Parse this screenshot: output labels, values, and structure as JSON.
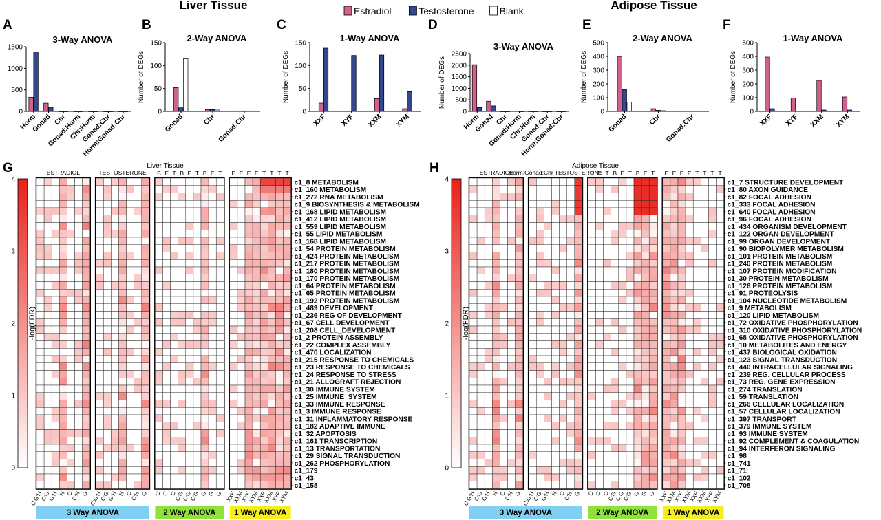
{
  "figure": {
    "liver_title": "Liver Tissue",
    "adipose_title": "Adipose Tissue",
    "legend": [
      {
        "label": "Estradiol",
        "color": "#d4608f"
      },
      {
        "label": "Testosterone",
        "color": "#34488f"
      },
      {
        "label": "Blank",
        "color": "#ffffff"
      }
    ]
  },
  "colors": {
    "estradiol": "#d4608f",
    "testosterone": "#34488f",
    "blank": "#ffffff",
    "heat_max": "#e8221c",
    "heat_min": "#ffffff",
    "anova3": "#7fd0f2",
    "anova2": "#8ee23a",
    "anova1": "#f5ef1e"
  },
  "chart_data": [
    {
      "panel": "A",
      "type": "bar",
      "title": "3-Way ANOVA",
      "ylabel": "Number of DEGs",
      "ylim": [
        0,
        1500
      ],
      "yticks": [
        0,
        500,
        1000,
        1500
      ],
      "categories": [
        "Horm",
        "Gonad",
        "Chr",
        "Gonad:Horm",
        "Chr:Horm",
        "Gonad:Chr",
        "Horm:Gonad:Chr"
      ],
      "series": [
        {
          "name": "Estradiol",
          "values": [
            330,
            190,
            0,
            0,
            0,
            0,
            0
          ]
        },
        {
          "name": "Testosterone",
          "values": [
            1380,
            95,
            0,
            0,
            0,
            0,
            0
          ]
        }
      ]
    },
    {
      "panel": "B",
      "type": "bar",
      "title": "2-Way ANOVA",
      "ylabel": "Number of DEGs",
      "ylim": [
        0,
        150
      ],
      "yticks": [
        0,
        50,
        100,
        150
      ],
      "categories": [
        "Gonad",
        "Chr",
        "Gonad:Chr"
      ],
      "series": [
        {
          "name": "Estradiol",
          "values": [
            52,
            4,
            1
          ]
        },
        {
          "name": "Testosterone",
          "values": [
            8,
            4,
            1
          ]
        },
        {
          "name": "Blank",
          "values": [
            115,
            3,
            1
          ]
        }
      ]
    },
    {
      "panel": "C",
      "type": "bar",
      "title": "1-Way ANOVA",
      "ylabel": "Number of DEGs",
      "ylim": [
        0,
        150
      ],
      "yticks": [
        0,
        50,
        100,
        150
      ],
      "categories": [
        "XXF",
        "XYF",
        "XXM",
        "XYM"
      ],
      "series": [
        {
          "name": "Estradiol",
          "values": [
            18,
            1,
            28,
            6
          ]
        },
        {
          "name": "Testosterone",
          "values": [
            138,
            122,
            123,
            43
          ]
        }
      ]
    },
    {
      "panel": "D",
      "type": "bar",
      "title": "3-Way ANOVA",
      "ylabel": "Number of DEGs",
      "ylim": [
        0,
        2500
      ],
      "yticks": [
        0,
        500,
        1000,
        1500,
        2000,
        2500
      ],
      "categories": [
        "Horm",
        "Gonad",
        "Chr",
        "Gonad:Horm",
        "Chr:Horm",
        "Gonad:Chr",
        "Horm:Gonad:Chr"
      ],
      "series": [
        {
          "name": "Estradiol",
          "values": [
            2020,
            440,
            0,
            10,
            0,
            0,
            0
          ]
        },
        {
          "name": "Testosterone",
          "values": [
            170,
            240,
            0,
            0,
            0,
            0,
            0
          ]
        }
      ]
    },
    {
      "panel": "E",
      "type": "bar",
      "title": "2-Way ANOVA",
      "ylabel": "Number of DEGs",
      "ylim": [
        0,
        500
      ],
      "yticks": [
        0,
        100,
        200,
        300,
        400,
        500
      ],
      "categories": [
        "Gonad",
        "Chr",
        "Gonad:Chr"
      ],
      "series": [
        {
          "name": "Estradiol",
          "values": [
            400,
            20,
            2
          ]
        },
        {
          "name": "Testosterone",
          "values": [
            158,
            8,
            2
          ]
        },
        {
          "name": "Blank",
          "values": [
            68,
            5,
            2
          ]
        }
      ]
    },
    {
      "panel": "F",
      "type": "bar",
      "title": "1-Way ANOVA",
      "ylabel": "Number of DEGs",
      "ylim": [
        0,
        500
      ],
      "yticks": [
        0,
        100,
        200,
        300,
        400,
        500
      ],
      "categories": [
        "XXF",
        "XYF",
        "XXM",
        "XYM"
      ],
      "series": [
        {
          "name": "Estradiol",
          "values": [
            395,
            98,
            225,
            105
          ]
        },
        {
          "name": "Testosterone",
          "values": [
            20,
            2,
            10,
            10
          ]
        }
      ]
    },
    {
      "panel": "G",
      "type": "heatmap",
      "title": "Liver Tissue",
      "colorbar_label": "-log(FDR)",
      "zlim": [
        0,
        4
      ],
      "zticks": [
        0,
        1,
        2,
        3,
        4
      ],
      "group_headers": [
        "ESTRADIOL",
        "TESTOSTERONE",
        "",
        ""
      ],
      "group_sizes": [
        7,
        7,
        9,
        8
      ],
      "top_labels": [
        "",
        "",
        "",
        "",
        "",
        "",
        "",
        "",
        "",
        "",
        "",
        "",
        "",
        "",
        "B",
        "E",
        "T",
        "B",
        "E",
        "T",
        "B",
        "E",
        "T",
        "E",
        "E",
        "E",
        "E",
        "T",
        "T",
        "T",
        "T"
      ],
      "bottom_labels": [
        "C:G:H",
        "C:G",
        "G:H",
        "H",
        "C",
        "C:H",
        "G",
        "C:G:H",
        "C:G",
        "G:H",
        "H",
        "C",
        "C:H",
        "G",
        "C",
        "C",
        "C",
        "C:G",
        "C:G",
        "C:G",
        "G",
        "G",
        "G",
        "XXF",
        "XXM",
        "XYF",
        "XYM",
        "XXF",
        "XXM",
        "XYF",
        "XYM"
      ],
      "rows": [
        "c1_8 METABOLISM",
        "c1_160 METABOLISM",
        "c1_272 RNA METABOLISM",
        "c1_9 BIOSYNTHESIS & METABOLISM",
        "c1_168 LIPID METABOLISM",
        "c1_412 LIPID METABOLISM",
        "c1_559 LIPID METABOLISM",
        "c1_55 LIPID METABOLISM",
        "c1_168 LIPID METABOLISM",
        "c1_54 PROTEIN METABOLISM",
        "c1_424 PROTEIN METABOLISM",
        "c1_217 PROTEIN METABOLISM",
        "c1_180 PROTEIN METABOLISM",
        "c1_170 PROTEIN METABOLISM",
        "c1_64 PROTEIN METABOLISM",
        "c1_65 PROTEIN METABOLISM",
        "c1_192 PROTEIN METABOLISM",
        "c1_489 DEVELOPMENT",
        "c1_236 REG OF DEVELOPMENT",
        "c1_67 CELL DEVELOPMENT",
        "c1_208 CELL_DEVELOPMENT",
        "c1_2 PROTEIN ASSEMBLY",
        "c1_22 COMPLEX ASSEMBLY",
        "c1_470 LOCALIZATION",
        "c1_215 RESPONSE TO CHEMICALS",
        "c1_23 RESPONSE TO CHEMICALS",
        "c1_24 RESPONSE TO STRESS",
        "c1_21 ALLOGRAFT REJECTION",
        "c1_30 IMMUNE SYSTEM",
        "c1_25 IMMUNE_SYSTEM",
        "c1_33 IMMUNE RESPONSE",
        "c1_3 IMMUNE RESPONSE",
        "c1_31 INFLAMMATORY RESPONSE",
        "c1_182 ADAPTIVE IMMUNE",
        "c1_32 APOPTOSIS",
        "c1_161 TRANSCRIPTION",
        "c1_13 TRANSPORTATION",
        "c1_29 SIGNAL TRANSDUCTION",
        "c1_262 PHOSPHORYLATION",
        "c1_179",
        "c1_43",
        "c1_158"
      ],
      "strong_columns": [
        3,
        6,
        10,
        13,
        20,
        25,
        26,
        27,
        28,
        29,
        30
      ]
    },
    {
      "panel": "H",
      "type": "heatmap",
      "title": "Adipose Tissue",
      "colorbar_label": "-log(FDR)",
      "zlim": [
        0,
        4
      ],
      "zticks": [
        0,
        1,
        2,
        3,
        4
      ],
      "group_headers": [
        "ESTRADIOL",
        "Horm:Gonad:Chr TESTOSTERONE",
        "",
        ""
      ],
      "group_sizes": [
        7,
        7,
        9,
        8
      ],
      "top_labels": [
        "",
        "",
        "",
        "",
        "",
        "",
        "",
        "",
        "",
        "",
        "",
        "",
        "",
        "",
        "B",
        "E",
        "T",
        "B",
        "E",
        "T",
        "B",
        "E",
        "T",
        "E",
        "E",
        "E",
        "E",
        "T",
        "T",
        "T",
        "T"
      ],
      "bottom_labels": [
        "C:G:H",
        "C:G",
        "G:H",
        "H",
        "C",
        "C:H",
        "G",
        "C:G:H",
        "C:G",
        "G:H",
        "H",
        "C",
        "C:H",
        "G",
        "C",
        "C",
        "C",
        "C:G",
        "C:G",
        "C:G",
        "G",
        "G",
        "G",
        "XXF",
        "XXM",
        "XYF",
        "XYM",
        "XXF",
        "XXM",
        "XYF",
        "XYM"
      ],
      "rows": [
        "c1_7 STRUCTURE DEVELOPMENT",
        "c1_80 AXON GUIDANCE",
        "c1_82 FOCAL ADHESION",
        "c1_333 FOCAL ADHESION",
        "c1_640 FOCAL ADHESION",
        "c1_96 FOCAL ADHESION",
        "c1_434 ORGANISM DEVELOPMENT",
        "c1_122 ORGAN DEVELOPMENT",
        "c1_99 ORGAN DEVELOPMENT",
        "c1_90 BIOPOLYMER METABOLISM",
        "c1_101 PROTEIN METABOLISM",
        "c1_240 PROTEIN METABOLISM",
        "c1_107 PROTEIN MODIFICATION",
        "c1_30 PROTEIN METABOLISM",
        "c1_126 PROTEIN METABOLISM",
        "c1_91 PROTEOLYSIS",
        "c1_104 NUCLEOTIDE METABOLISM",
        "c1_9 METABOLISM",
        "c1_120 LIPID METABOLISM",
        "c1_72 OXIDATIVE PHOSPHORYLATION",
        "c1_310 OXIDATIVE PHOSPHORYLATION",
        "c1_68 OXIDATIVE PHOSPHORYLATION",
        "c1_10 METABOLITES AND ENERGY",
        "c1_437 BIOLOGICAL OXIDATION",
        "c1_123 SIGNAL TRANSDUCTION",
        "c1_440 INTRACELLULAR SIGNALING",
        "c1_239 REG. CELLULAR PROCESS",
        "c1_73 REG. GENE EXPRESSION",
        "c1_274 TRANSLATION",
        "c1_59 TRANSLATION",
        "c1_266 CELLULAR LOCALIZATION",
        "c1_57 CELLULAR LOCALIZATION",
        "c1_397 TRANSPORT",
        "c1_379 IMMUNE SYSTEM",
        "c1_93 IMMUNE SYSTEM",
        "c1_92 COMPLEMENT & COAGULATION",
        "c1_94 INTERFERON SIGNALING",
        "c1_98",
        "c1_741",
        "c1_71",
        "c1_102",
        "c1_708"
      ],
      "strong_columns": [
        3,
        6,
        13,
        20,
        21,
        22,
        23,
        24,
        25
      ]
    }
  ],
  "anova_bars": [
    {
      "label": "3 Way ANOVA",
      "color": "#7fd0f2"
    },
    {
      "label": "2 Way ANOVA",
      "color": "#8ee23a"
    },
    {
      "label": "1 Way ANOVA",
      "color": "#f5ef1e"
    }
  ],
  "panel_letters": [
    "A",
    "B",
    "C",
    "D",
    "E",
    "F",
    "G",
    "H"
  ]
}
